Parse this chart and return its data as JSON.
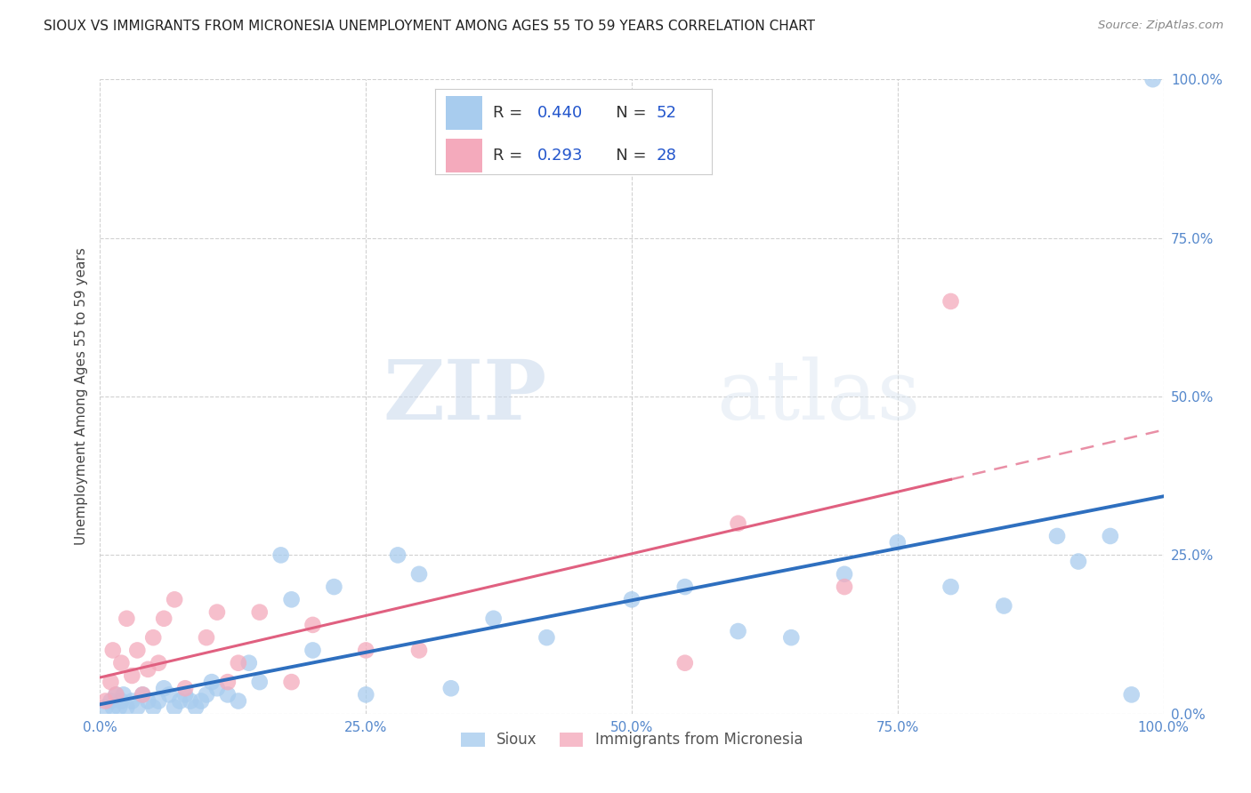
{
  "title": "SIOUX VS IMMIGRANTS FROM MICRONESIA UNEMPLOYMENT AMONG AGES 55 TO 59 YEARS CORRELATION CHART",
  "source": "Source: ZipAtlas.com",
  "ylabel": "Unemployment Among Ages 55 to 59 years",
  "xlim": [
    0,
    100
  ],
  "ylim": [
    0,
    100
  ],
  "xticks": [
    0,
    25,
    50,
    75,
    100
  ],
  "yticks": [
    0,
    25,
    50,
    75,
    100
  ],
  "xticklabels": [
    "0.0%",
    "25.0%",
    "50.0%",
    "75.0%",
    "100.0%"
  ],
  "yticklabels": [
    "0.0%",
    "25.0%",
    "50.0%",
    "75.0%",
    "100.0%"
  ],
  "tick_color": "#5588CC",
  "sioux_color": "#A8CCEE",
  "micronesia_color": "#F4AABC",
  "sioux_R": 0.44,
  "sioux_N": 52,
  "micronesia_R": 0.293,
  "micronesia_N": 28,
  "sioux_line_color": "#2E6FBF",
  "micronesia_line_color": "#E06080",
  "watermark_zip": "ZIP",
  "watermark_atlas": "atlas",
  "sioux_x": [
    0.5,
    1,
    1.2,
    1.5,
    1.8,
    2,
    2.2,
    2.5,
    3,
    3.5,
    4,
    4.5,
    5,
    5.5,
    6,
    6.5,
    7,
    7.5,
    8,
    8.5,
    9,
    9.5,
    10,
    10.5,
    11,
    12,
    13,
    14,
    15,
    17,
    18,
    20,
    22,
    25,
    28,
    30,
    33,
    37,
    42,
    50,
    55,
    60,
    65,
    70,
    75,
    80,
    85,
    90,
    92,
    95,
    97,
    99
  ],
  "sioux_y": [
    1,
    2,
    1,
    3,
    1,
    2,
    3,
    1,
    2,
    1,
    3,
    2,
    1,
    2,
    4,
    3,
    1,
    2,
    3,
    2,
    1,
    2,
    3,
    5,
    4,
    3,
    2,
    8,
    5,
    25,
    18,
    10,
    20,
    3,
    25,
    22,
    4,
    15,
    12,
    18,
    20,
    13,
    12,
    22,
    27,
    20,
    17,
    28,
    24,
    28,
    3,
    100
  ],
  "micronesia_x": [
    0.5,
    1,
    1.2,
    1.5,
    2,
    2.5,
    3,
    3.5,
    4,
    4.5,
    5,
    5.5,
    6,
    7,
    8,
    10,
    11,
    12,
    13,
    15,
    18,
    20,
    25,
    30,
    55,
    60,
    70,
    80
  ],
  "micronesia_y": [
    2,
    5,
    10,
    3,
    8,
    15,
    6,
    10,
    3,
    7,
    12,
    8,
    15,
    18,
    4,
    12,
    16,
    5,
    8,
    16,
    5,
    14,
    10,
    10,
    8,
    30,
    20,
    65
  ],
  "legend_R_color": "#2255CC",
  "legend_N_color": "#2255CC"
}
